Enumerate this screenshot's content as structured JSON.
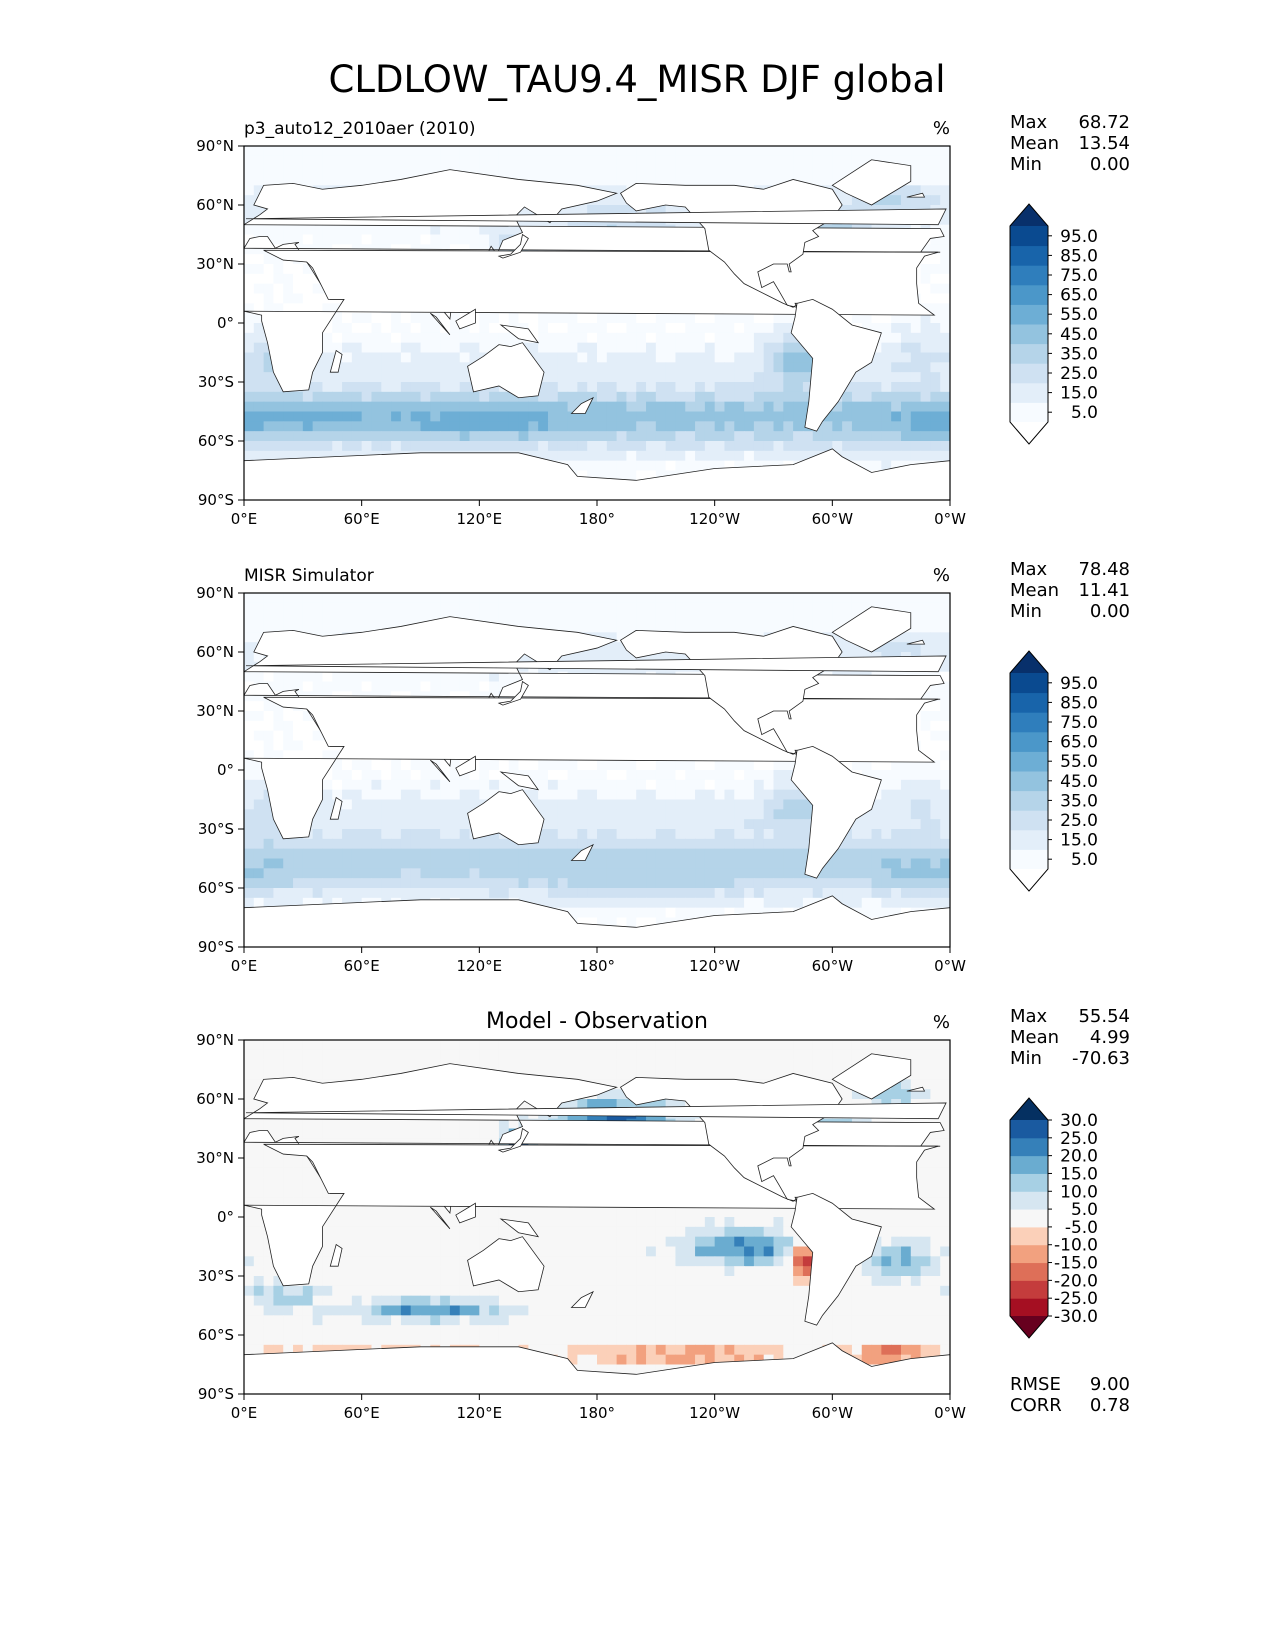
{
  "title": "CLDLOW_TAU9.4_MISR DJF global",
  "chart_data": [
    {
      "type": "heatmap",
      "panel": "test",
      "subtitle": "p3_auto12_2010aer (2010)",
      "units": "%",
      "stats": {
        "max_label": "Max",
        "max": "68.72",
        "mean_label": "Mean",
        "mean": "13.54",
        "min_label": "Min",
        "min": "0.00"
      },
      "xticks": [
        "0°E",
        "60°E",
        "120°E",
        "180°",
        "120°W",
        "60°W",
        "0°W"
      ],
      "yticks": [
        "90°N",
        "60°N",
        "30°N",
        "0°",
        "30°S",
        "60°S",
        "90°S"
      ],
      "xlim": [
        0,
        360
      ],
      "ylim": [
        -90,
        90
      ],
      "colorbar": {
        "ticks": [
          "95.0",
          "85.0",
          "75.0",
          "65.0",
          "55.0",
          "45.0",
          "35.0",
          "25.0",
          "15.0",
          "5.0"
        ],
        "colors": [
          "#f7fbff",
          "#e3eef9",
          "#cfe1f2",
          "#b5d4e9",
          "#93c3df",
          "#6daed5",
          "#4b97c9",
          "#2f7ebc",
          "#1864aa",
          "#0a4a90"
        ],
        "under": "#ffffff",
        "over": "#08306b"
      }
    },
    {
      "type": "heatmap",
      "panel": "reference",
      "subtitle": "MISR Simulator",
      "units": "%",
      "stats": {
        "max_label": "Max",
        "max": "78.48",
        "mean_label": "Mean",
        "mean": "11.41",
        "min_label": "Min",
        "min": "0.00"
      },
      "xticks": [
        "0°E",
        "60°E",
        "120°E",
        "180°",
        "120°W",
        "60°W",
        "0°W"
      ],
      "yticks": [
        "90°N",
        "60°N",
        "30°N",
        "0°",
        "30°S",
        "60°S",
        "90°S"
      ],
      "xlim": [
        0,
        360
      ],
      "ylim": [
        -90,
        90
      ],
      "colorbar": {
        "ticks": [
          "95.0",
          "85.0",
          "75.0",
          "65.0",
          "55.0",
          "45.0",
          "35.0",
          "25.0",
          "15.0",
          "5.0"
        ],
        "colors": [
          "#f7fbff",
          "#e3eef9",
          "#cfe1f2",
          "#b5d4e9",
          "#93c3df",
          "#6daed5",
          "#4b97c9",
          "#2f7ebc",
          "#1864aa",
          "#0a4a90"
        ],
        "under": "#ffffff",
        "over": "#08306b"
      }
    },
    {
      "type": "heatmap",
      "panel": "difference",
      "subtitle": "Model - Observation",
      "units": "%",
      "stats": {
        "max_label": "Max",
        "max": "55.54",
        "mean_label": "Mean",
        "mean": "4.99",
        "min_label": "Min",
        "min": "-70.63"
      },
      "metrics": {
        "rmse_label": "RMSE",
        "rmse": "9.00",
        "corr_label": "CORR",
        "corr": "0.78"
      },
      "xticks": [
        "0°E",
        "60°E",
        "120°E",
        "180°",
        "120°W",
        "60°W",
        "0°W"
      ],
      "yticks": [
        "90°N",
        "60°N",
        "30°N",
        "0°",
        "30°S",
        "60°S",
        "90°S"
      ],
      "xlim": [
        0,
        360
      ],
      "ylim": [
        -90,
        90
      ],
      "colorbar": {
        "ticks": [
          "30.0",
          "25.0",
          "20.0",
          "15.0",
          "10.0",
          "5.0",
          "-5.0",
          "-10.0",
          "-15.0",
          "-20.0",
          "-25.0",
          "-30.0"
        ],
        "colors": [
          "#a50f22",
          "#c43c3c",
          "#de6f58",
          "#f2a17f",
          "#fbd0b9",
          "#f7f7f7",
          "#d6e6f1",
          "#a7d0e4",
          "#6aacd0",
          "#3580b9",
          "#1a5aa0"
        ],
        "under": "#67001f",
        "over": "#053061"
      }
    }
  ]
}
